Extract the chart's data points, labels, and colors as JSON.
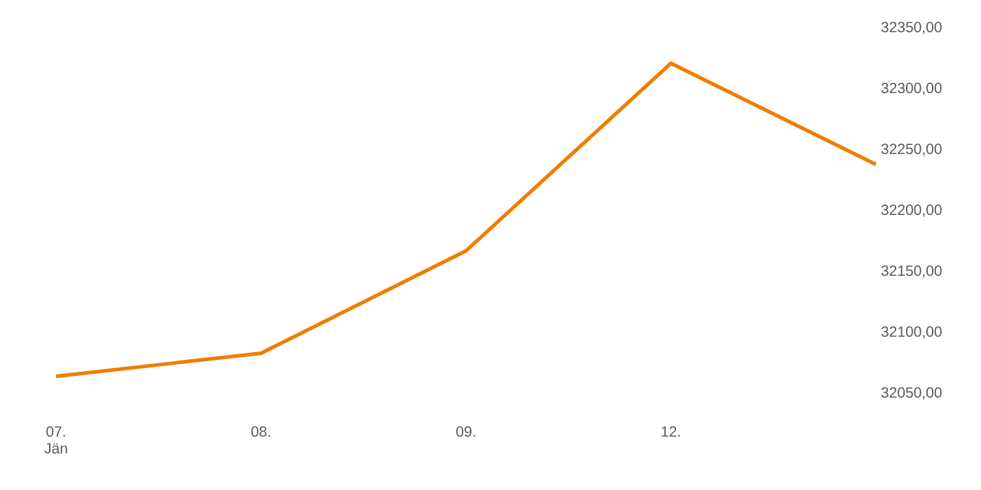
{
  "chart_data": {
    "type": "line",
    "categories": [
      "07. Jän",
      "08.",
      "09.",
      "12.",
      null
    ],
    "series": [
      {
        "color": "#f07d00",
        "values": [
          32064,
          32083,
          32167,
          32321,
          32238
        ]
      }
    ],
    "ylim": [
      32050,
      32350
    ],
    "yticks": [
      {
        "value": 32050,
        "label": "32050,00"
      },
      {
        "value": 32100,
        "label": "32100,00"
      },
      {
        "value": 32150,
        "label": "32150,00"
      },
      {
        "value": 32200,
        "label": "32200,00"
      },
      {
        "value": 32250,
        "label": "32250,00"
      },
      {
        "value": 32300,
        "label": "32300,00"
      },
      {
        "value": 32350,
        "label": "32350,00"
      }
    ],
    "marker": "none",
    "line_style": "solid"
  }
}
